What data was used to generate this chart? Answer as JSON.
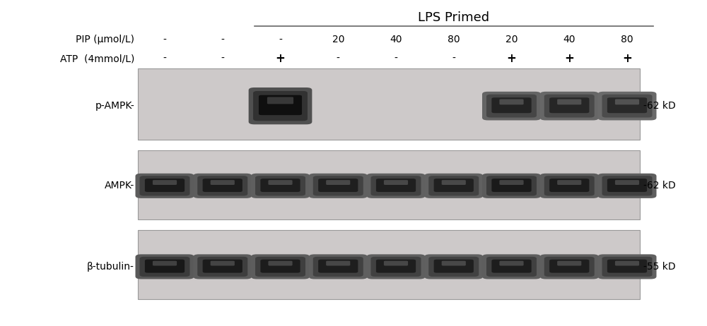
{
  "fig_width": 10.0,
  "fig_height": 4.62,
  "title_text": "LPS Primed",
  "row1_label": "PIP (μmol/L)",
  "row2_label": "ATP  (4mmol/L)",
  "pip_values": [
    "-",
    "-",
    "-",
    "20",
    "40",
    "80",
    "20",
    "40",
    "80"
  ],
  "atp_values": [
    "-",
    "-",
    "+",
    "-",
    "-",
    "-",
    "+",
    "+",
    "+"
  ],
  "band_labels": [
    "p-AMPK-",
    "AMPK-",
    "β-tubulin-"
  ],
  "kd_labels": [
    "-62 kD",
    "-62 kD",
    "-55 kD"
  ],
  "n_lanes": 9,
  "panel_bg": "#cdc9c9",
  "band_intensities_pampk": [
    0,
    0,
    1.0,
    0,
    0,
    0,
    0.62,
    0.58,
    0.52
  ],
  "band_intensities_ampk": [
    0.78,
    0.75,
    0.72,
    0.7,
    0.7,
    0.68,
    0.8,
    0.76,
    0.73
  ],
  "band_intensities_tubulin": [
    0.82,
    0.78,
    0.76,
    0.72,
    0.72,
    0.7,
    0.74,
    0.72,
    0.7
  ]
}
